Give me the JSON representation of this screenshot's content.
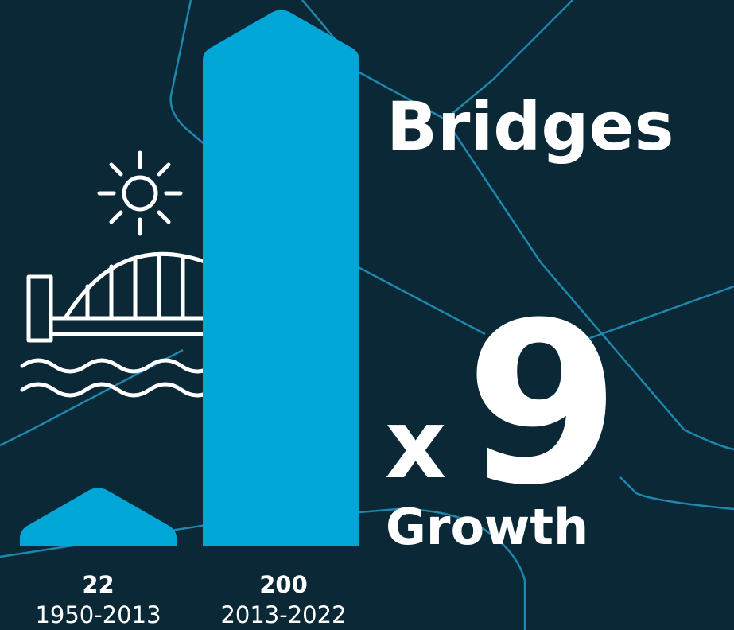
{
  "chart_data": {
    "type": "bar",
    "title": "Bridges",
    "annotations": [
      "x",
      "9",
      "Growth"
    ],
    "categories": [
      "1950-2013",
      "2013-2022"
    ],
    "values": [
      22,
      200
    ],
    "color": "#00a6d6"
  }
}
